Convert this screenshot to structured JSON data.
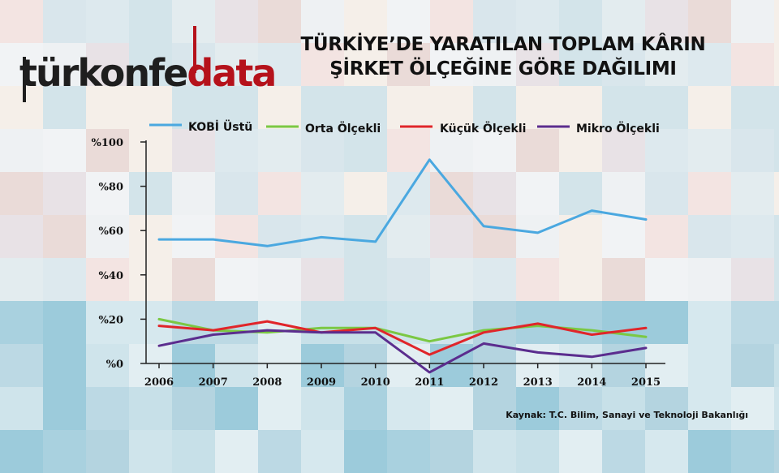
{
  "logo": {
    "brand": "türkonfe",
    "accent": "data"
  },
  "title_line1": "TÜRKİYE’DE YARATILAN TOPLAM KÂRIN",
  "title_line2": "ŞİRKET ÖLÇEĞİNE GÖRE DAĞILIMI",
  "source": "Kaynak: T.C. Bilim, Sanayi ve Teknoloji Bakanlığı",
  "colors": {
    "kobi_ustu": "#4aa8e0",
    "orta": "#7bc843",
    "kucuk": "#e0252a",
    "mikro": "#5b2d8e"
  },
  "chart_data": {
    "type": "line",
    "title": "TÜRKİYE’DE YARATILAN TOPLAM KÂRIN ŞİRKET ÖLÇEĞİNE GÖRE DAĞILIMI",
    "x": [
      "2006",
      "2007",
      "2008",
      "2009",
      "2010",
      "2011",
      "2012",
      "2013",
      "2014",
      "2015"
    ],
    "ylim": [
      0,
      100
    ],
    "yticks": [
      0,
      20,
      40,
      60,
      80,
      100
    ],
    "ytick_labels": [
      "%0",
      "%20",
      "%40",
      "%60",
      "%80",
      "%100"
    ],
    "legend_position": "top",
    "grid": false,
    "series": [
      {
        "name": "KOBİ Üstü",
        "color": "#4aa8e0",
        "values": [
          56,
          56,
          53,
          57,
          55,
          92,
          62,
          59,
          69,
          65
        ]
      },
      {
        "name": "Orta Ölçekli",
        "color": "#7bc843",
        "values": [
          20,
          15,
          14,
          16,
          16,
          10,
          15,
          17,
          15,
          12
        ]
      },
      {
        "name": "Küçük Ölçekli",
        "color": "#e0252a",
        "values": [
          17,
          15,
          19,
          14,
          16,
          4,
          14,
          18,
          13,
          16
        ]
      },
      {
        "name": "Mikro Ölçekli",
        "color": "#5b2d8e",
        "values": [
          8,
          13,
          15,
          14,
          14,
          -4,
          9,
          5,
          3,
          7
        ]
      }
    ]
  }
}
